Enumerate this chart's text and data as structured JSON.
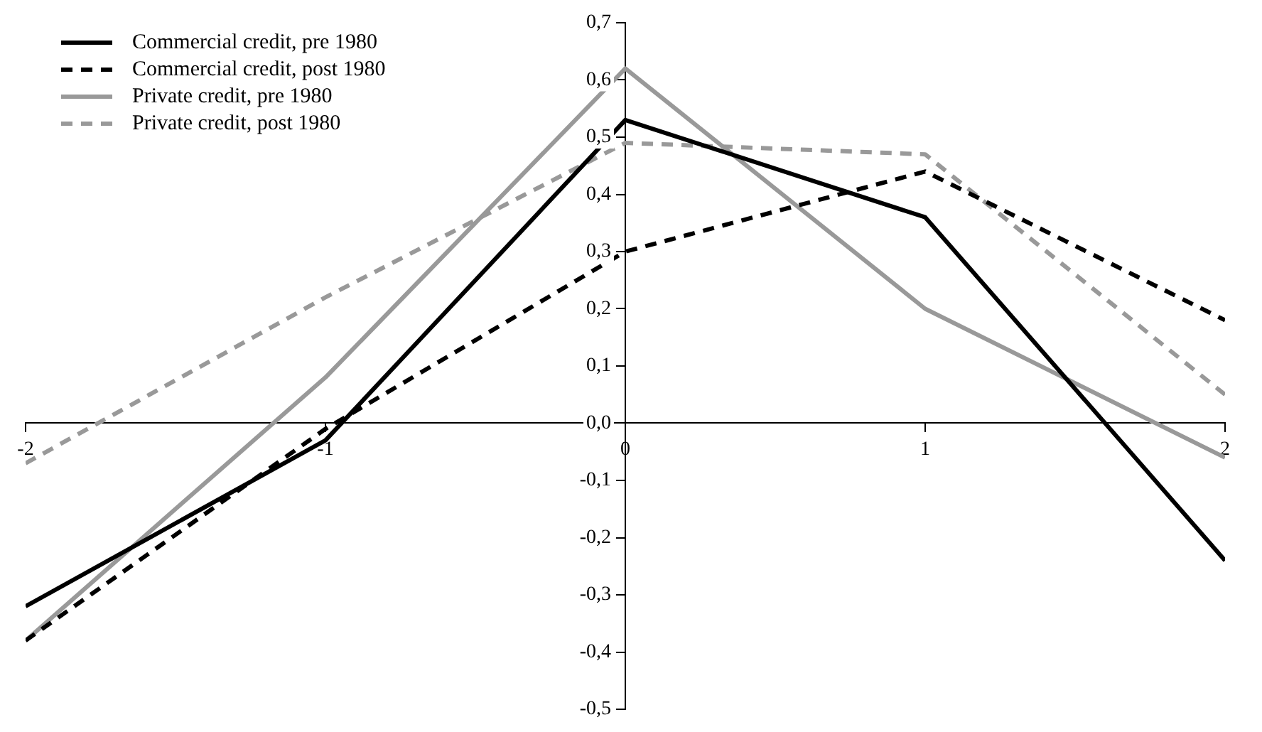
{
  "chart_data": {
    "type": "line",
    "x": [
      -2,
      -1,
      0,
      1,
      2
    ],
    "series": [
      {
        "name": "Commercial credit, pre 1980",
        "color": "#000000",
        "line_style": "solid",
        "values": [
          -0.32,
          -0.03,
          0.53,
          0.36,
          -0.24
        ]
      },
      {
        "name": "Commercial credit, post 1980",
        "color": "#000000",
        "line_style": "dashed",
        "values": [
          -0.38,
          -0.01,
          0.3,
          0.44,
          0.18
        ]
      },
      {
        "name": "Private credit, pre 1980",
        "color": "#999999",
        "line_style": "solid",
        "values": [
          -0.38,
          0.08,
          0.62,
          0.2,
          -0.06
        ]
      },
      {
        "name": "Private credit, post 1980",
        "color": "#999999",
        "line_style": "dashed",
        "values": [
          -0.07,
          0.22,
          0.49,
          0.47,
          0.05
        ]
      }
    ],
    "xlim": [
      -2,
      2
    ],
    "xticks": [
      -2,
      -1,
      0,
      1,
      2
    ],
    "ylim": [
      -0.5,
      0.7
    ],
    "yticks": [
      {
        "value": -0.5,
        "label": "-0,5"
      },
      {
        "value": -0.4,
        "label": "-0,4"
      },
      {
        "value": -0.3,
        "label": "-0,3"
      },
      {
        "value": -0.2,
        "label": "-0,2"
      },
      {
        "value": -0.1,
        "label": "-0,1"
      },
      {
        "value": 0,
        "label": "0,0"
      },
      {
        "value": 0.1,
        "label": "0,1"
      },
      {
        "value": 0.2,
        "label": "0,2"
      },
      {
        "value": 0.3,
        "label": "0,3"
      },
      {
        "value": 0.4,
        "label": "0,4"
      },
      {
        "value": 0.5,
        "label": "0,5"
      },
      {
        "value": 0.6,
        "label": "0,6"
      },
      {
        "value": 0.7,
        "label": "0,7"
      }
    ],
    "grid": false,
    "legend": "top left",
    "marker": "none"
  }
}
